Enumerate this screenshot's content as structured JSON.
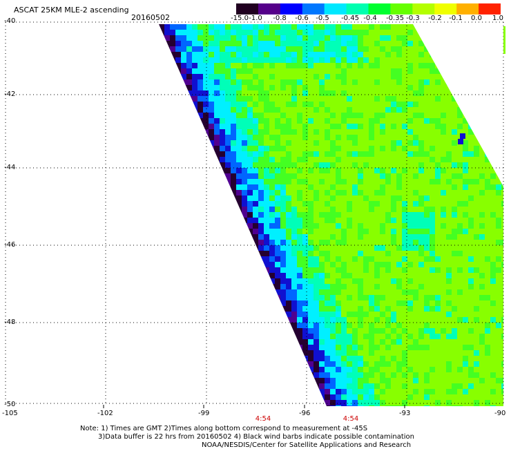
{
  "header": {
    "title": "ASCAT 25KM MLE-2 ascending",
    "date": "20160502"
  },
  "colorbar": {
    "labels": [
      "-15.0",
      "-1.0",
      "-0.8",
      "-0.6",
      "-0.5",
      "-0.45",
      "-0.4",
      "-0.35",
      "-0.3",
      "-0.2",
      "-0.1",
      "0.0",
      "1.0"
    ],
    "colors": [
      "#200020",
      "#55008a",
      "#0000ff",
      "#0077ff",
      "#00e8ff",
      "#00ffb0",
      "#00ff30",
      "#66ff00",
      "#b4ff00",
      "#f0ff00",
      "#ffb000",
      "#ff2200"
    ]
  },
  "map": {
    "lat_labels": [
      "-40",
      "-42",
      "-44",
      "-46",
      "-48",
      "-50"
    ],
    "lon_labels": [
      "-105",
      "-102",
      "-99",
      "-96",
      "-93",
      "-90"
    ],
    "times": [
      "4:54",
      "4:54"
    ],
    "lat_range": [
      -50,
      -40
    ],
    "lon_range": [
      -105,
      -90
    ],
    "field_colors": {
      "dominant": "#88ff00",
      "green": "#44ff22",
      "aqua": "#00ffb8",
      "cyan": "#00f0ff",
      "blue": "#0066ff",
      "dark_blue": "#1010d0",
      "purple": "#500090",
      "dark_purple": "#250030"
    }
  },
  "notes": {
    "line1": "Note: 1) Times are GMT 2)Times along bottom correspond to measurement at -45S",
    "line2": "3)Data buffer is 22 hrs from 20160502 4) Black wind barbs indicate possible contamination",
    "line3": "NOAA/NESDIS/Center for Satellite Applications and Research"
  }
}
